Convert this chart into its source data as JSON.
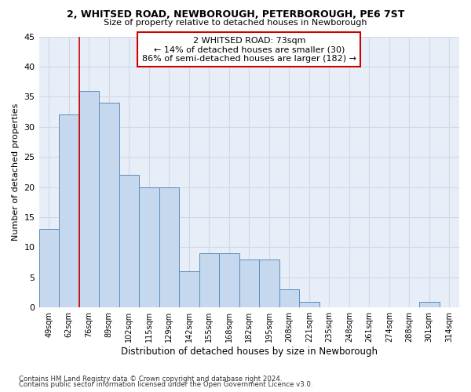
{
  "title_line1": "2, WHITSED ROAD, NEWBOROUGH, PETERBOROUGH, PE6 7ST",
  "title_line2": "Size of property relative to detached houses in Newborough",
  "xlabel": "Distribution of detached houses by size in Newborough",
  "ylabel": "Number of detached properties",
  "bar_labels": [
    "49sqm",
    "62sqm",
    "76sqm",
    "89sqm",
    "102sqm",
    "115sqm",
    "129sqm",
    "142sqm",
    "155sqm",
    "168sqm",
    "182sqm",
    "195sqm",
    "208sqm",
    "221sqm",
    "235sqm",
    "248sqm",
    "261sqm",
    "274sqm",
    "288sqm",
    "301sqm",
    "314sqm"
  ],
  "bar_values": [
    13,
    32,
    36,
    34,
    22,
    20,
    20,
    6,
    9,
    9,
    8,
    8,
    3,
    1,
    0,
    0,
    0,
    0,
    0,
    1,
    0
  ],
  "bar_color": "#c5d8ed",
  "bar_edge_color": "#5b8db8",
  "grid_color": "#d0d8e8",
  "bg_color": "#e8eef8",
  "vline_x": 1.5,
  "annotation_text": "2 WHITSED ROAD: 73sqm\n← 14% of detached houses are smaller (30)\n86% of semi-detached houses are larger (182) →",
  "annotation_box_color": "white",
  "annotation_box_edge": "#cc0000",
  "footer_line1": "Contains HM Land Registry data © Crown copyright and database right 2024.",
  "footer_line2": "Contains public sector information licensed under the Open Government Licence v3.0.",
  "ylim": [
    0,
    45
  ],
  "yticks": [
    0,
    5,
    10,
    15,
    20,
    25,
    30,
    35,
    40,
    45
  ]
}
